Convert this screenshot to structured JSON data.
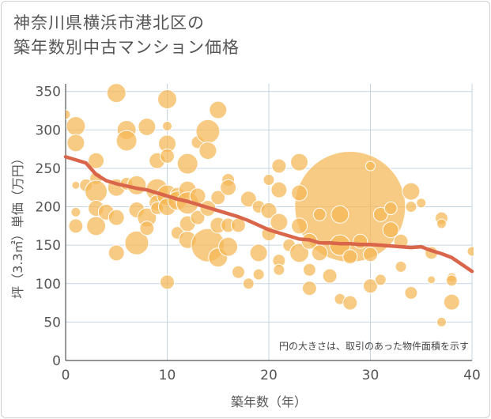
{
  "title": {
    "line1": "神奈川県横浜市港北区の",
    "line2": "築年数別中古マンション価格"
  },
  "note": "円の大きさは、取引のあった物件面積を示す",
  "colors": {
    "bubble": "#f5b754",
    "bubble_stroke": "#ffffff",
    "trend": "#d9654b",
    "grid": "#c7d6e3",
    "axis": "#555555"
  },
  "chart_data": {
    "type": "scatter",
    "xlabel": "築年数（年）",
    "ylabel": "坪（3.3㎡）単価（万円）",
    "xlim": [
      0,
      40
    ],
    "ylim": [
      0,
      360
    ],
    "xticks": [
      0,
      10,
      20,
      30,
      40
    ],
    "yticks": [
      0,
      50,
      100,
      150,
      200,
      250,
      300,
      350
    ],
    "grid": true,
    "points": [
      {
        "x": 28,
        "y": 200,
        "r": 70
      },
      {
        "x": 0,
        "y": 320,
        "r": 6
      },
      {
        "x": 1,
        "y": 305,
        "r": 12
      },
      {
        "x": 1,
        "y": 283,
        "r": 11
      },
      {
        "x": 1,
        "y": 228,
        "r": 5
      },
      {
        "x": 1,
        "y": 193,
        "r": 6
      },
      {
        "x": 1,
        "y": 175,
        "r": 9
      },
      {
        "x": 2,
        "y": 228,
        "r": 8
      },
      {
        "x": 3,
        "y": 260,
        "r": 10
      },
      {
        "x": 3,
        "y": 237,
        "r": 8
      },
      {
        "x": 3,
        "y": 220,
        "r": 14
      },
      {
        "x": 3,
        "y": 198,
        "r": 10
      },
      {
        "x": 3,
        "y": 175,
        "r": 12
      },
      {
        "x": 4,
        "y": 193,
        "r": 10
      },
      {
        "x": 5,
        "y": 348,
        "r": 12
      },
      {
        "x": 5,
        "y": 225,
        "r": 11
      },
      {
        "x": 5,
        "y": 186,
        "r": 10
      },
      {
        "x": 5,
        "y": 140,
        "r": 10
      },
      {
        "x": 6,
        "y": 300,
        "r": 12
      },
      {
        "x": 6,
        "y": 286,
        "r": 13
      },
      {
        "x": 6,
        "y": 230,
        "r": 8
      },
      {
        "x": 7,
        "y": 228,
        "r": 12
      },
      {
        "x": 7,
        "y": 196,
        "r": 10
      },
      {
        "x": 7,
        "y": 153,
        "r": 15
      },
      {
        "x": 8,
        "y": 304,
        "r": 11
      },
      {
        "x": 8,
        "y": 186,
        "r": 12
      },
      {
        "x": 8,
        "y": 172,
        "r": 9
      },
      {
        "x": 9,
        "y": 260,
        "r": 10
      },
      {
        "x": 9,
        "y": 222,
        "r": 14
      },
      {
        "x": 9,
        "y": 205,
        "r": 10
      },
      {
        "x": 9,
        "y": 198,
        "r": 8
      },
      {
        "x": 10,
        "y": 340,
        "r": 12
      },
      {
        "x": 10,
        "y": 305,
        "r": 6
      },
      {
        "x": 10,
        "y": 282,
        "r": 11
      },
      {
        "x": 10,
        "y": 266,
        "r": 9
      },
      {
        "x": 10,
        "y": 215,
        "r": 13
      },
      {
        "x": 10,
        "y": 200,
        "r": 11
      },
      {
        "x": 10,
        "y": 102,
        "r": 9
      },
      {
        "x": 11,
        "y": 216,
        "r": 9
      },
      {
        "x": 11,
        "y": 208,
        "r": 12
      },
      {
        "x": 11,
        "y": 166,
        "r": 8
      },
      {
        "x": 12,
        "y": 256,
        "r": 13
      },
      {
        "x": 12,
        "y": 222,
        "r": 11
      },
      {
        "x": 12,
        "y": 205,
        "r": 14
      },
      {
        "x": 12,
        "y": 178,
        "r": 10
      },
      {
        "x": 12,
        "y": 157,
        "r": 11
      },
      {
        "x": 13,
        "y": 284,
        "r": 8
      },
      {
        "x": 13,
        "y": 214,
        "r": 10
      },
      {
        "x": 13,
        "y": 186,
        "r": 9
      },
      {
        "x": 14,
        "y": 298,
        "r": 15
      },
      {
        "x": 14,
        "y": 273,
        "r": 11
      },
      {
        "x": 14,
        "y": 198,
        "r": 10
      },
      {
        "x": 14,
        "y": 150,
        "r": 21
      },
      {
        "x": 15,
        "y": 326,
        "r": 11
      },
      {
        "x": 15,
        "y": 212,
        "r": 9
      },
      {
        "x": 15,
        "y": 176,
        "r": 10
      },
      {
        "x": 15,
        "y": 134,
        "r": 12
      },
      {
        "x": 16,
        "y": 235,
        "r": 8
      },
      {
        "x": 16,
        "y": 225,
        "r": 10
      },
      {
        "x": 16,
        "y": 176,
        "r": 9
      },
      {
        "x": 16,
        "y": 148,
        "r": 12
      },
      {
        "x": 17,
        "y": 176,
        "r": 9
      },
      {
        "x": 17,
        "y": 115,
        "r": 8
      },
      {
        "x": 18,
        "y": 210,
        "r": 10
      },
      {
        "x": 18,
        "y": 100,
        "r": 7
      },
      {
        "x": 19,
        "y": 200,
        "r": 8
      },
      {
        "x": 19,
        "y": 140,
        "r": 11
      },
      {
        "x": 19,
        "y": 112,
        "r": 7
      },
      {
        "x": 20,
        "y": 235,
        "r": 7
      },
      {
        "x": 20,
        "y": 195,
        "r": 10
      },
      {
        "x": 20,
        "y": 165,
        "r": 9
      },
      {
        "x": 21,
        "y": 253,
        "r": 9
      },
      {
        "x": 21,
        "y": 222,
        "r": 10
      },
      {
        "x": 21,
        "y": 180,
        "r": 11
      },
      {
        "x": 21,
        "y": 130,
        "r": 8
      },
      {
        "x": 21,
        "y": 118,
        "r": 7
      },
      {
        "x": 22,
        "y": 150,
        "r": 8
      },
      {
        "x": 23,
        "y": 258,
        "r": 11
      },
      {
        "x": 23,
        "y": 218,
        "r": 10
      },
      {
        "x": 23,
        "y": 175,
        "r": 10
      },
      {
        "x": 23,
        "y": 140,
        "r": 12
      },
      {
        "x": 24,
        "y": 155,
        "r": 10
      },
      {
        "x": 24,
        "y": 118,
        "r": 8
      },
      {
        "x": 24,
        "y": 94,
        "r": 9
      },
      {
        "x": 25,
        "y": 190,
        "r": 8
      },
      {
        "x": 25,
        "y": 140,
        "r": 10
      },
      {
        "x": 26,
        "y": 110,
        "r": 9
      },
      {
        "x": 27,
        "y": 190,
        "r": 11
      },
      {
        "x": 27,
        "y": 150,
        "r": 13
      },
      {
        "x": 27,
        "y": 80,
        "r": 7
      },
      {
        "x": 28,
        "y": 135,
        "r": 9
      },
      {
        "x": 28,
        "y": 75,
        "r": 9
      },
      {
        "x": 29,
        "y": 155,
        "r": 9
      },
      {
        "x": 30,
        "y": 253,
        "r": 6
      },
      {
        "x": 30,
        "y": 138,
        "r": 9
      },
      {
        "x": 30,
        "y": 97,
        "r": 9
      },
      {
        "x": 31,
        "y": 190,
        "r": 9
      },
      {
        "x": 31,
        "y": 105,
        "r": 7
      },
      {
        "x": 32,
        "y": 198,
        "r": 8
      },
      {
        "x": 32,
        "y": 170,
        "r": 10
      },
      {
        "x": 33,
        "y": 155,
        "r": 9
      },
      {
        "x": 33,
        "y": 122,
        "r": 7
      },
      {
        "x": 34,
        "y": 220,
        "r": 11
      },
      {
        "x": 34,
        "y": 200,
        "r": 7
      },
      {
        "x": 34,
        "y": 88,
        "r": 8
      },
      {
        "x": 35,
        "y": 205,
        "r": 6
      },
      {
        "x": 36,
        "y": 140,
        "r": 8
      },
      {
        "x": 36,
        "y": 105,
        "r": 5
      },
      {
        "x": 37,
        "y": 185,
        "r": 8
      },
      {
        "x": 37,
        "y": 178,
        "r": 6
      },
      {
        "x": 37,
        "y": 50,
        "r": 6
      },
      {
        "x": 38,
        "y": 108,
        "r": 6
      },
      {
        "x": 38,
        "y": 104,
        "r": 7
      },
      {
        "x": 38,
        "y": 76,
        "r": 10
      },
      {
        "x": 40,
        "y": 142,
        "r": 6
      }
    ],
    "trend": {
      "x": [
        0,
        1,
        2,
        3,
        4,
        5,
        6,
        7,
        8,
        9,
        10,
        11,
        12,
        13,
        14,
        15,
        16,
        17,
        18,
        19,
        20,
        21,
        22,
        23,
        24,
        25,
        26,
        27,
        28,
        29,
        30,
        31,
        32,
        33,
        34,
        35,
        36,
        37,
        38,
        39,
        40
      ],
      "y": [
        265,
        261,
        257,
        242,
        234,
        230,
        227,
        224,
        222,
        218,
        214,
        210,
        207,
        203,
        199,
        195,
        191,
        187,
        182,
        176,
        170,
        166,
        162,
        158,
        157,
        153,
        153,
        152,
        152,
        151,
        151,
        150,
        149,
        148,
        147,
        148,
        143,
        139,
        134,
        125,
        116
      ]
    }
  }
}
